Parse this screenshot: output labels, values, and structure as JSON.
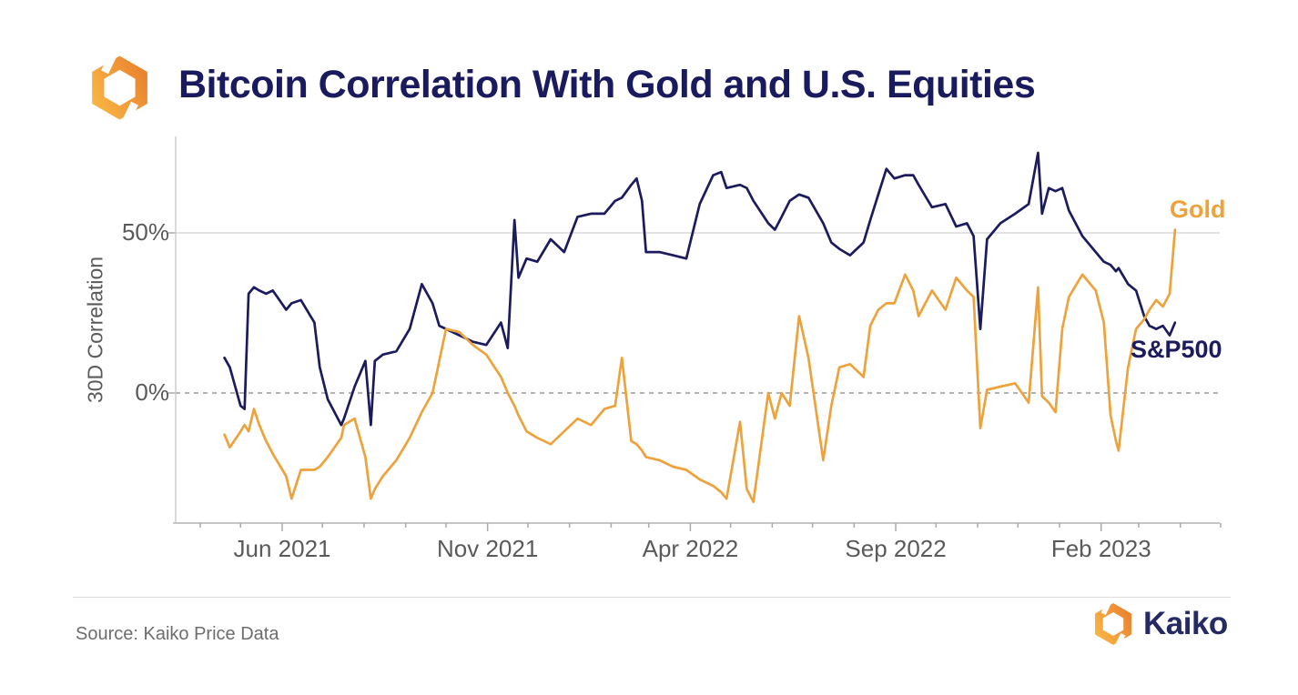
{
  "header": {
    "title": "Bitcoin Correlation With Gold and U.S. Equities"
  },
  "footer": {
    "source": "Source: Kaiko Price Data",
    "brand": "Kaiko"
  },
  "icons": {
    "logo": "kaiko-hexagon-mark"
  },
  "colors": {
    "title_text": "#1a1a5e",
    "sp500_line": "#1b1b5e",
    "gold_line": "#eea23c",
    "grid_solid": "#d0d0d0",
    "grid_dashed": "#989898",
    "axis_line": "#c6c6c6",
    "tick_text": "#5a5a5a",
    "logo_orange_light": "#f6ae3c",
    "logo_orange_dark": "#e87f2c"
  },
  "chart_data": {
    "type": "line",
    "title": "Bitcoin Correlation With Gold and U.S. Equities",
    "xlabel": "",
    "ylabel": "30D Correlation",
    "ylim": [
      -40,
      80
    ],
    "grid": "horizontal-only",
    "legend_position": "labels-at-line-end",
    "x_ticks": [
      {
        "label": "Jun 2021",
        "date": "2021-06-01"
      },
      {
        "label": "Nov 2021",
        "date": "2021-11-01"
      },
      {
        "label": "Apr 2022",
        "date": "2022-04-01"
      },
      {
        "label": "Sep 2022",
        "date": "2022-09-01"
      },
      {
        "label": "Feb 2023",
        "date": "2023-02-01"
      }
    ],
    "y_ticks": [
      {
        "label": "50%",
        "value": 50,
        "grid": "solid"
      },
      {
        "label": "0%",
        "value": 0,
        "grid": "dashed"
      }
    ],
    "x": [
      "2021-04-19",
      "2021-04-23",
      "2021-05-01",
      "2021-05-04",
      "2021-05-07",
      "2021-05-11",
      "2021-05-15",
      "2021-05-20",
      "2021-05-25",
      "2021-06-04",
      "2021-06-08",
      "2021-06-15",
      "2021-06-25",
      "2021-06-29",
      "2021-07-05",
      "2021-07-15",
      "2021-07-17",
      "2021-07-25",
      "2021-08-02",
      "2021-08-06",
      "2021-08-09",
      "2021-08-15",
      "2021-08-25",
      "2021-09-04",
      "2021-09-13",
      "2021-09-21",
      "2021-09-26",
      "2021-10-01",
      "2021-10-11",
      "2021-10-21",
      "2021-10-31",
      "2021-11-11",
      "2021-11-16",
      "2021-11-21",
      "2021-11-24",
      "2021-11-30",
      "2021-12-08",
      "2021-12-18",
      "2021-12-28",
      "2022-01-07",
      "2022-01-17",
      "2022-01-27",
      "2022-02-04",
      "2022-02-09",
      "2022-02-16",
      "2022-02-20",
      "2022-02-24",
      "2022-02-27",
      "2022-03-09",
      "2022-03-19",
      "2022-03-29",
      "2022-04-08",
      "2022-04-18",
      "2022-04-24",
      "2022-04-28",
      "2022-05-08",
      "2022-05-13",
      "2022-05-18",
      "2022-05-29",
      "2022-06-03",
      "2022-06-08",
      "2022-06-14",
      "2022-06-21",
      "2022-06-28",
      "2022-07-09",
      "2022-07-15",
      "2022-07-21",
      "2022-07-29",
      "2022-08-08",
      "2022-08-13",
      "2022-08-19",
      "2022-08-25",
      "2022-08-31",
      "2022-09-08",
      "2022-09-14",
      "2022-09-18",
      "2022-09-28",
      "2022-10-08",
      "2022-10-16",
      "2022-10-24",
      "2022-10-29",
      "2022-11-03",
      "2022-11-08",
      "2022-11-18",
      "2022-11-29",
      "2022-12-09",
      "2022-12-16",
      "2022-12-19",
      "2022-12-24",
      "2022-12-29",
      "2023-01-03",
      "2023-01-08",
      "2023-01-18",
      "2023-01-28",
      "2023-02-03",
      "2023-02-08",
      "2023-02-12",
      "2023-02-14",
      "2023-02-21",
      "2023-02-27",
      "2023-03-05",
      "2023-03-09",
      "2023-03-14",
      "2023-03-19",
      "2023-03-24",
      "2023-03-28"
    ],
    "series": [
      {
        "name": "S&P500",
        "color": "#1b1b5e",
        "unit": "%",
        "values": [
          11,
          8,
          -4,
          -5,
          31,
          33,
          32,
          31,
          32,
          26,
          28,
          29,
          22,
          8,
          -2,
          -10,
          -8,
          2,
          10,
          -10,
          10,
          12,
          13,
          20,
          34,
          28,
          21,
          20,
          18,
          16,
          15,
          22,
          14,
          54,
          36,
          42,
          41,
          48,
          44,
          55,
          56,
          56,
          60,
          61,
          65,
          67,
          60,
          44,
          44,
          43,
          42,
          59,
          68,
          69,
          64,
          65,
          64,
          60,
          53,
          51,
          55,
          60,
          62,
          61,
          53,
          47,
          45,
          43,
          47,
          54,
          62,
          70,
          67,
          68,
          68,
          65,
          58,
          59,
          52,
          53,
          49,
          20,
          48,
          53,
          56,
          59,
          75,
          56,
          64,
          63,
          64,
          57,
          49,
          44,
          41,
          40,
          38,
          39,
          34,
          32,
          24,
          21,
          20,
          21,
          18,
          22
        ]
      },
      {
        "name": "Gold",
        "color": "#eea23c",
        "unit": "%",
        "values": [
          -13,
          -17,
          -12,
          -10,
          -12,
          -5,
          -10,
          -15,
          -19,
          -26,
          -33,
          -24,
          -24,
          -23,
          -20,
          -14,
          -10,
          -8,
          -20,
          -33,
          -30,
          -26,
          -21,
          -14,
          -6,
          0,
          10,
          20,
          19,
          15,
          12,
          5,
          0,
          -4,
          -7,
          -12,
          -14,
          -16,
          -12,
          -8,
          -10,
          -5,
          -4,
          11,
          -15,
          -16,
          -18,
          -20,
          -21,
          -23,
          -24,
          -27,
          -29,
          -31,
          -33,
          -9,
          -30,
          -34,
          0,
          -8,
          0,
          -4,
          24,
          11,
          -21,
          -4,
          8,
          9,
          5,
          21,
          26,
          28,
          28,
          37,
          32,
          24,
          32,
          26,
          36,
          32,
          30,
          -11,
          1,
          2,
          3,
          -3,
          33,
          -1,
          -3,
          -6,
          20,
          30,
          37,
          32,
          22,
          -7,
          -15,
          -18,
          8,
          20,
          23,
          26,
          29,
          27,
          31,
          51
        ]
      }
    ]
  }
}
